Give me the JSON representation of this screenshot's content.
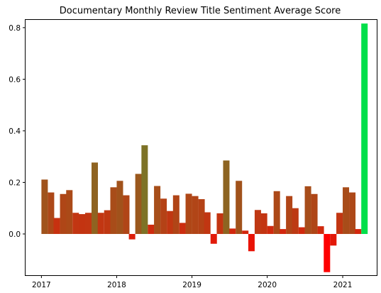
{
  "chart_data": {
    "type": "bar",
    "title": "Documentary Monthly Review Title Sentiment Average Score",
    "xlabel": "",
    "ylabel": "",
    "x_tick_labels": [
      "2017",
      "2018",
      "2019",
      "2020",
      "2021"
    ],
    "y_tick_labels": [
      "0.0",
      "0.2",
      "0.4",
      "0.6",
      "0.8"
    ],
    "y_ticks": [
      0.0,
      0.2,
      0.4,
      0.6,
      0.8
    ],
    "ylim": [
      -0.16,
      0.83
    ],
    "xlim": [
      "2016-10-16",
      "2021-06-15"
    ],
    "grid": false,
    "bar_color_scale": {
      "low": -0.15,
      "high": 0.82,
      "low_color": "#ff0000",
      "high_color": "#00e04a"
    },
    "categories": [
      "2017-01",
      "2017-02",
      "2017-03",
      "2017-04",
      "2017-05",
      "2017-06",
      "2017-07",
      "2017-08",
      "2017-09",
      "2017-10",
      "2017-11",
      "2017-12",
      "2018-01",
      "2018-02",
      "2018-03",
      "2018-04",
      "2018-05",
      "2018-06",
      "2018-07",
      "2018-08",
      "2018-09",
      "2018-10",
      "2018-11",
      "2018-12",
      "2019-01",
      "2019-02",
      "2019-03",
      "2019-04",
      "2019-05",
      "2019-06",
      "2019-07",
      "2019-08",
      "2019-09",
      "2019-10",
      "2019-11",
      "2019-12",
      "2020-01",
      "2020-02",
      "2020-03",
      "2020-04",
      "2020-05",
      "2020-06",
      "2020-07",
      "2020-08",
      "2020-09",
      "2020-10",
      "2020-11",
      "2020-12",
      "2021-01",
      "2021-02",
      "2021-03",
      "2021-04"
    ],
    "values": [
      0.211,
      0.161,
      0.062,
      0.155,
      0.17,
      0.082,
      0.077,
      0.082,
      0.277,
      0.082,
      0.092,
      0.181,
      0.206,
      0.15,
      -0.021,
      0.233,
      0.344,
      0.036,
      0.186,
      0.137,
      0.089,
      0.15,
      0.043,
      0.156,
      0.147,
      0.135,
      0.084,
      -0.038,
      0.08,
      0.285,
      0.021,
      0.206,
      0.013,
      -0.067,
      0.093,
      0.08,
      0.031,
      0.166,
      0.019,
      0.147,
      0.1,
      0.026,
      0.185,
      0.155,
      0.03,
      -0.148,
      -0.045,
      0.082,
      0.181,
      0.161,
      0.019,
      0.816
    ]
  }
}
